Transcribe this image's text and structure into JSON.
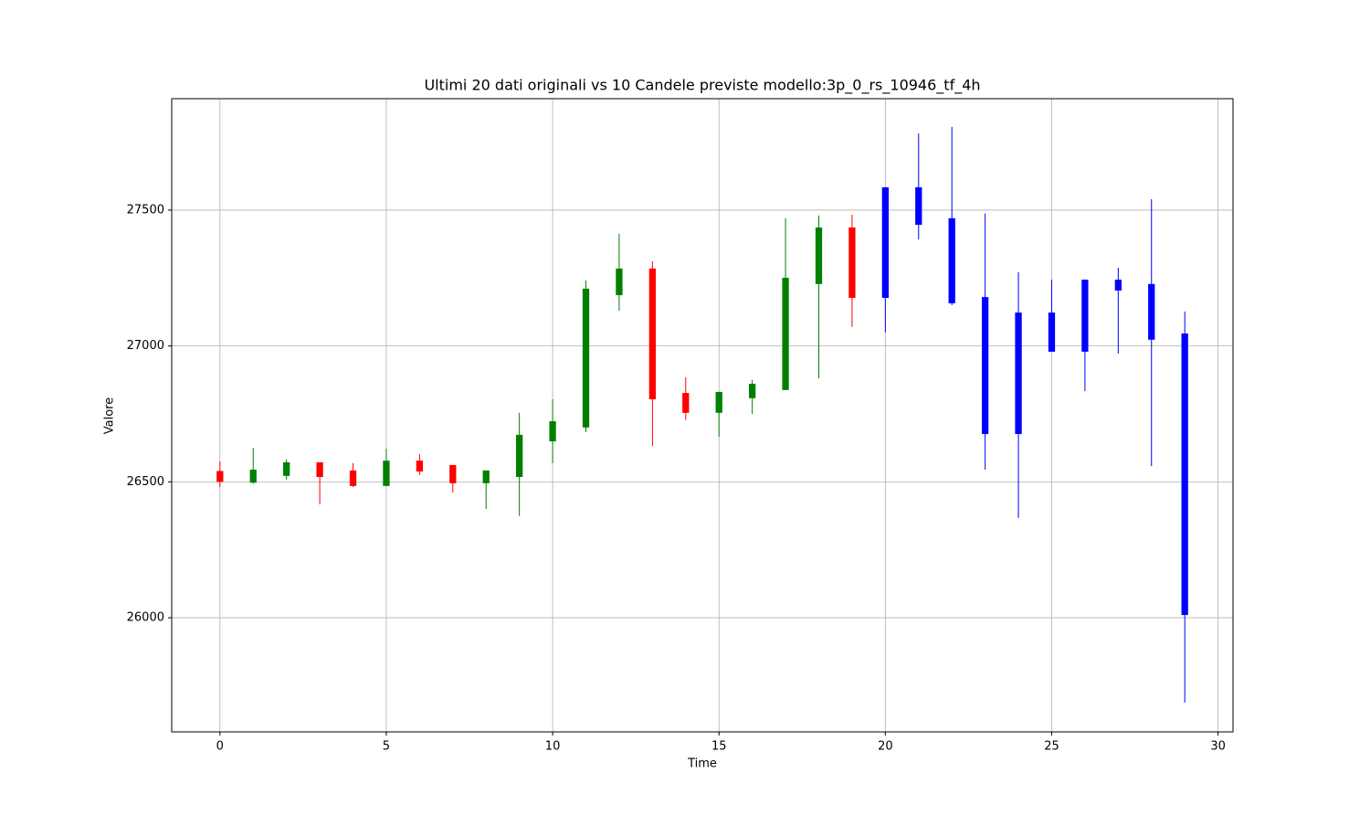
{
  "chart_data": {
    "type": "candlestick",
    "title": "Ultimi 20 dati originali vs 10 Candele previste modello:3p_0_rs_10946_tf_4h",
    "x_label": "Time",
    "y_label": "Valore",
    "x": [
      0,
      1,
      2,
      3,
      4,
      5,
      6,
      7,
      8,
      9,
      10,
      11,
      12,
      13,
      14,
      15,
      16,
      17,
      18,
      19,
      20,
      21,
      22,
      23,
      24,
      25,
      26,
      27,
      28,
      29
    ],
    "open": [
      26540,
      26497,
      26522,
      26572,
      26542,
      26485,
      26578,
      26562,
      26495,
      26518,
      26649,
      26700,
      27187,
      27285,
      26827,
      26754,
      26808,
      26838,
      27228,
      27436,
      27177,
      27584,
      27470,
      27180,
      27123,
      27123,
      26979,
      27244,
      27228,
      27046
    ],
    "high": [
      26575,
      26625,
      26582,
      26572,
      26569,
      26622,
      26602,
      26562,
      26542,
      26754,
      26804,
      27241,
      27413,
      27312,
      26885,
      26831,
      26875,
      27470,
      27480,
      27483,
      27584,
      27782,
      27806,
      27487,
      27271,
      27244,
      27244,
      27288,
      27540,
      27127
    ],
    "low": [
      26481,
      26493,
      26508,
      26417,
      26481,
      26485,
      26525,
      26461,
      26400,
      26374,
      26569,
      26683,
      27130,
      26632,
      26727,
      26666,
      26750,
      26838,
      26881,
      27070,
      27050,
      27392,
      27150,
      26545,
      26367,
      26979,
      26834,
      26972,
      26558,
      25688
    ],
    "close": [
      26500,
      26545,
      26572,
      26518,
      26485,
      26578,
      26538,
      26495,
      26542,
      26673,
      26723,
      27211,
      27285,
      26804,
      26754,
      26831,
      26861,
      27251,
      27436,
      27177,
      27584,
      27446,
      27157,
      26676,
      26676,
      26979,
      27244,
      27204,
      27023,
      26010
    ],
    "colors": [
      "red",
      "green",
      "green",
      "red",
      "red",
      "green",
      "red",
      "red",
      "green",
      "green",
      "green",
      "green",
      "green",
      "red",
      "red",
      "green",
      "green",
      "green",
      "green",
      "red",
      "blue",
      "blue",
      "blue",
      "blue",
      "blue",
      "blue",
      "blue",
      "blue",
      "blue",
      "blue"
    ],
    "xlim": [
      -1.45,
      30.45
    ],
    "xticks": [
      0,
      5,
      10,
      15,
      20,
      25,
      30
    ],
    "ylim": [
      25580,
      27910
    ],
    "yticks": [
      26000,
      26500,
      27000,
      27500
    ],
    "grid": true
  }
}
